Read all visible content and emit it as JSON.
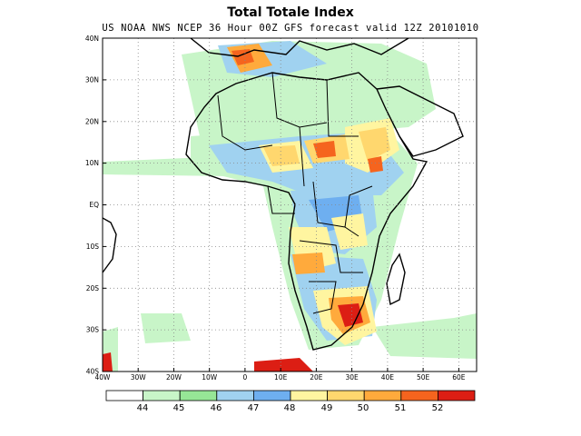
{
  "header": {
    "title": "Total Totale Index",
    "subtitle": "US NOAA NWS NCEP 36 Hour 00Z GFS forecast valid 12Z 20101010"
  },
  "map": {
    "lat_labels": [
      "40N",
      "30N",
      "20N",
      "10N",
      "EQ",
      "10S",
      "20S",
      "30S",
      "40S"
    ],
    "lon_labels": [
      "40W",
      "30W",
      "20W",
      "10W",
      "0",
      "10E",
      "20E",
      "30E",
      "40E",
      "50E",
      "60E"
    ],
    "lat_range": [
      -40,
      40
    ],
    "lon_range": [
      -40,
      65
    ],
    "gridlines": "dotted"
  },
  "legend": {
    "colors": [
      "#ffffff",
      "#c8f5c8",
      "#96e696",
      "#a0d2f0",
      "#6eaff0",
      "#fff5a0",
      "#ffd76e",
      "#ffaa3c",
      "#f5641e",
      "#dc1e14"
    ],
    "labels": [
      "44",
      "45",
      "46",
      "47",
      "48",
      "49",
      "50",
      "51",
      "52"
    ]
  }
}
